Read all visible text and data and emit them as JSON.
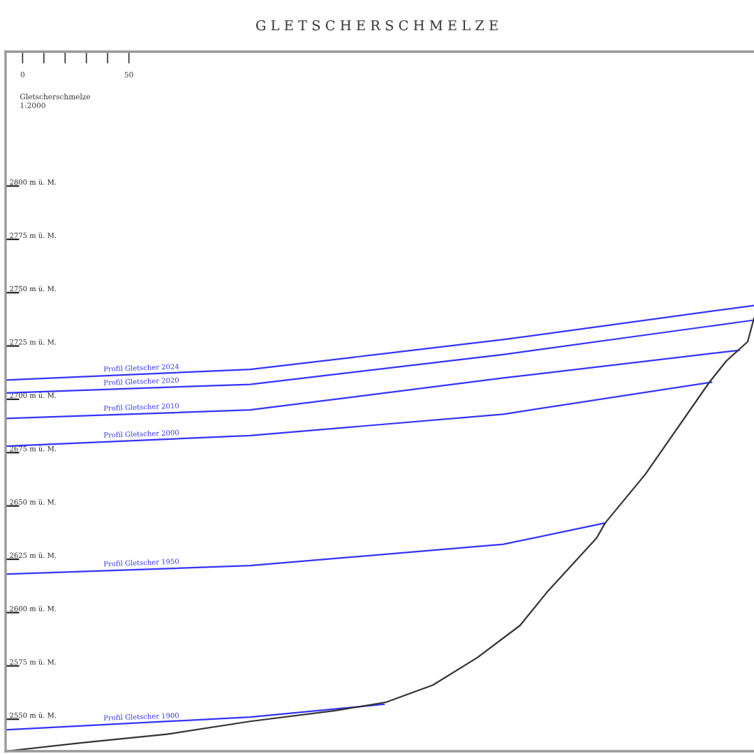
{
  "chart_data": {
    "type": "line",
    "title": "G L E T S C H E R S C H M E L Z E",
    "annotations": [
      "Gletscherschmelze\n1:2000"
    ],
    "xlim": [
      -8,
      344
    ],
    "xticks": [
      {
        "value": 0,
        "label": "0"
      },
      {
        "value": 10,
        "label": null
      },
      {
        "value": 20,
        "label": null
      },
      {
        "value": 30,
        "label": null
      },
      {
        "value": 40,
        "label": null
      },
      {
        "value": 50,
        "label": "50"
      }
    ],
    "ylim": [
      2535,
      2863
    ],
    "yticks": [
      {
        "value": 2550,
        "label": "2550 m ü. M."
      },
      {
        "value": 2575,
        "label": "2575 m ü. M."
      },
      {
        "value": 2600,
        "label": "2600 m ü. M."
      },
      {
        "value": 2625,
        "label": "2625 m ü. M."
      },
      {
        "value": 2650,
        "label": "2650 m ü. M."
      },
      {
        "value": 2675,
        "label": "2675 m ü. M."
      },
      {
        "value": 2700,
        "label": "2700 m ü. M."
      },
      {
        "value": 2725,
        "label": "2725 m ü. M."
      },
      {
        "value": 2750,
        "label": "2750 m ü. M."
      },
      {
        "value": 2775,
        "label": "2775 m ü. M."
      },
      {
        "value": 2800,
        "label": "2800 m ü. M."
      }
    ],
    "grid": false,
    "legend": false,
    "marker": "none",
    "line_style": "solid",
    "series": [
      {
        "name": "Profil Gletscher 2024",
        "color": "#3333ff",
        "x": [
          -8,
          107,
          226,
          344
        ],
        "values": [
          2709,
          2714,
          2728,
          2744
        ]
      },
      {
        "name": "Profil Gletscher 2020",
        "color": "#3333ff",
        "x": [
          -8,
          107,
          226,
          343
        ],
        "values": [
          2703,
          2707,
          2721,
          2737
        ]
      },
      {
        "name": "Profil Gletscher 2010",
        "color": "#3333ff",
        "x": [
          -8,
          107,
          226,
          337
        ],
        "values": [
          2691,
          2695,
          2710,
          2723
        ]
      },
      {
        "name": "Profil Gletscher 2000",
        "color": "#3333ff",
        "x": [
          -8,
          107,
          226,
          324
        ],
        "values": [
          2678,
          2683,
          2693,
          2708
        ]
      },
      {
        "name": "Profil Gletscher 1950",
        "color": "#3333ff",
        "x": [
          -8,
          107,
          226,
          274
        ],
        "values": [
          2618,
          2622,
          2632,
          2642
        ]
      },
      {
        "name": "Profil Gletscher 1900",
        "color": "#3333ff",
        "x": [
          -8,
          107,
          170
        ],
        "values": [
          2545,
          2551,
          2557
        ]
      },
      {
        "color": "#333333",
        "x": [
          -8,
          28,
          68,
          107,
          147,
          171,
          193,
          214,
          234,
          247,
          270,
          274,
          293,
          323,
          331,
          341,
          344
        ],
        "values": [
          2535,
          2539,
          2543,
          2549,
          2554,
          2558,
          2566,
          2579,
          2594,
          2610,
          2635,
          2642,
          2665,
          2708,
          2718,
          2727,
          2738
        ]
      }
    ]
  }
}
